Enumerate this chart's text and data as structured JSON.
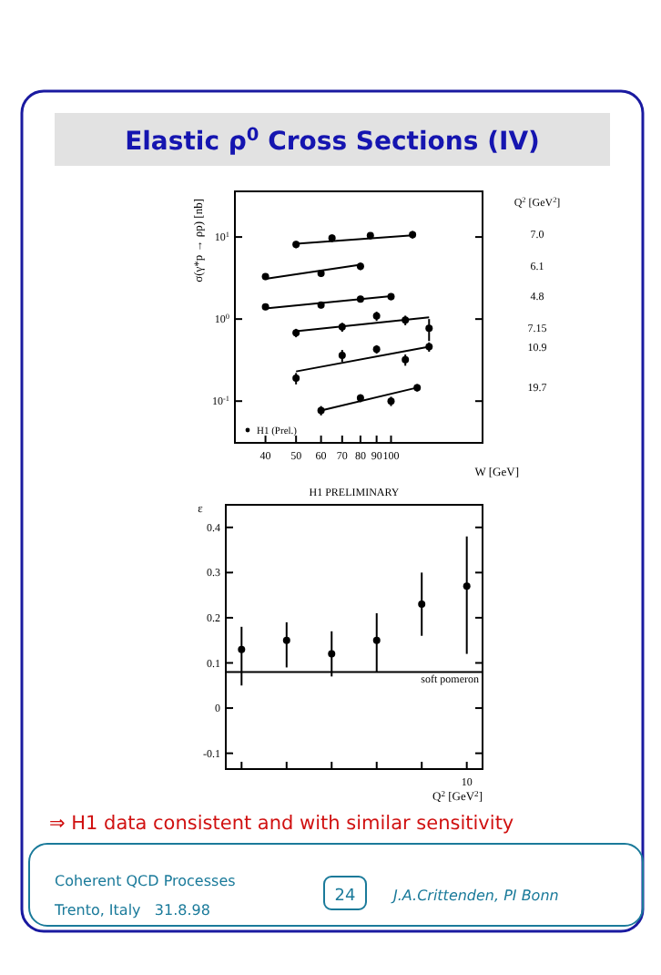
{
  "chart_data": [
    {
      "type": "scatter",
      "title": "Elastic ρ$^{0}$ Cross Sections (IV)",
      "xlabel": "W [GeV]",
      "ylabel": "σ(γ*p → ρp) [nb]",
      "legend_title": "Q$^{2}$ [GeV$^{2}$]",
      "log": "xy",
      "xlim": [
        32,
        195
      ],
      "xticks": [
        40,
        50,
        60,
        70,
        80,
        90,
        100
      ],
      "ylim": [
        0.031,
        36
      ],
      "yticks": [
        {
          "value": 10,
          "label": "10$^{1}$"
        },
        {
          "value": 1,
          "label": "10$^{0}$"
        },
        {
          "value": 0.1,
          "label": "10$^{-1}$"
        }
      ],
      "marker": "circle",
      "annotations": [
        "H1 (Prel.)"
      ],
      "series": [
        {
          "name": "7.0",
          "color": "#000000",
          "x": [
            50,
            65,
            86,
            117
          ],
          "values": [
            8.1,
            9.7,
            10.4,
            10.7
          ],
          "errors": [
            0.8,
            1,
            1,
            1.1
          ]
        },
        {
          "name": "6.1",
          "color": "#000000",
          "x": [
            40,
            60,
            80
          ],
          "values": [
            3.3,
            3.6,
            4.4
          ],
          "errors": [
            0.3,
            0.35,
            0.45
          ]
        },
        {
          "name": "4.8",
          "color": "#000000",
          "x": [
            40,
            60,
            80,
            100
          ],
          "values": [
            1.41,
            1.48,
            1.75,
            1.88
          ],
          "errors": [
            0.12,
            0.13,
            0.16,
            0.18
          ]
        },
        {
          "name": "7.15",
          "color": "#000000",
          "x": [
            50,
            70,
            90,
            111,
            132
          ],
          "values": [
            0.68,
            0.8,
            1.09,
            0.97,
            0.77
          ],
          "errors": [
            0.08,
            0.1,
            0.14,
            0.13,
            0.23
          ]
        },
        {
          "name": "10.9",
          "color": "#000000",
          "x": [
            50,
            70,
            90,
            111,
            132
          ],
          "values": [
            0.19,
            0.36,
            0.43,
            0.32,
            0.46
          ],
          "errors": [
            0.03,
            0.06,
            0.05,
            0.05,
            0.06
          ]
        },
        {
          "name": "19.7",
          "color": "#000000",
          "x": [
            60,
            80,
            100,
            121
          ],
          "values": [
            0.077,
            0.109,
            0.1,
            0.146
          ],
          "errors": [
            0.01,
            0.012,
            0.013,
            0.015
          ]
        },
        {
          "type": "line",
          "marker": "none",
          "color": "#000000",
          "x": [
            50,
            117
          ],
          "values": [
            8.3,
            10.5
          ]
        },
        {
          "type": "line",
          "marker": "none",
          "color": "#000000",
          "x": [
            40,
            80
          ],
          "values": [
            3.1,
            4.6
          ]
        },
        {
          "type": "line",
          "marker": "none",
          "color": "#000000",
          "x": [
            40,
            100
          ],
          "values": [
            1.35,
            1.9
          ]
        },
        {
          "type": "line",
          "marker": "none",
          "color": "#000000",
          "x": [
            50,
            132
          ],
          "values": [
            0.71,
            1.05
          ]
        },
        {
          "type": "line",
          "marker": "none",
          "color": "#000000",
          "x": [
            50,
            132
          ],
          "values": [
            0.23,
            0.46
          ]
        },
        {
          "type": "line",
          "marker": "none",
          "color": "#000000",
          "x": [
            60,
            121
          ],
          "values": [
            0.077,
            0.146
          ]
        }
      ]
    },
    {
      "type": "scatter",
      "title": "H1 PRELIMINARY",
      "xlabel": "Q$^{2}$ [GeV$^{2}$]",
      "ylabel": "ε",
      "categories": [
        null,
        null,
        null,
        null,
        null,
        "10"
      ],
      "ylim": [
        -0.135,
        0.45
      ],
      "yticks": [
        -0.1,
        0,
        0.1,
        0.2,
        0.3,
        0.4
      ],
      "marker": "circle",
      "series": [
        {
          "color": "#000000",
          "values": [
            0.13,
            0.15,
            0.12,
            0.15,
            0.23,
            0.27
          ],
          "errors": [
            [
              0.05,
              0.18
            ],
            [
              0.09,
              0.19
            ],
            [
              0.07,
              0.17
            ],
            [
              0.08,
              0.21
            ],
            [
              0.16,
              0.3
            ],
            [
              0.12,
              0.38
            ]
          ]
        }
      ],
      "ref_lines": [
        {
          "axis": "y",
          "value": 0.08,
          "label": "soft pomeron",
          "color": "#000000"
        }
      ],
      "annotations": [
        "⇒ H1 data consistent and with similar sensitivity",
        "Coherent QCD Processes",
        "Trento, Italy   31.8.98",
        "24",
        "J.A.Crittenden, PI Bonn"
      ]
    }
  ]
}
